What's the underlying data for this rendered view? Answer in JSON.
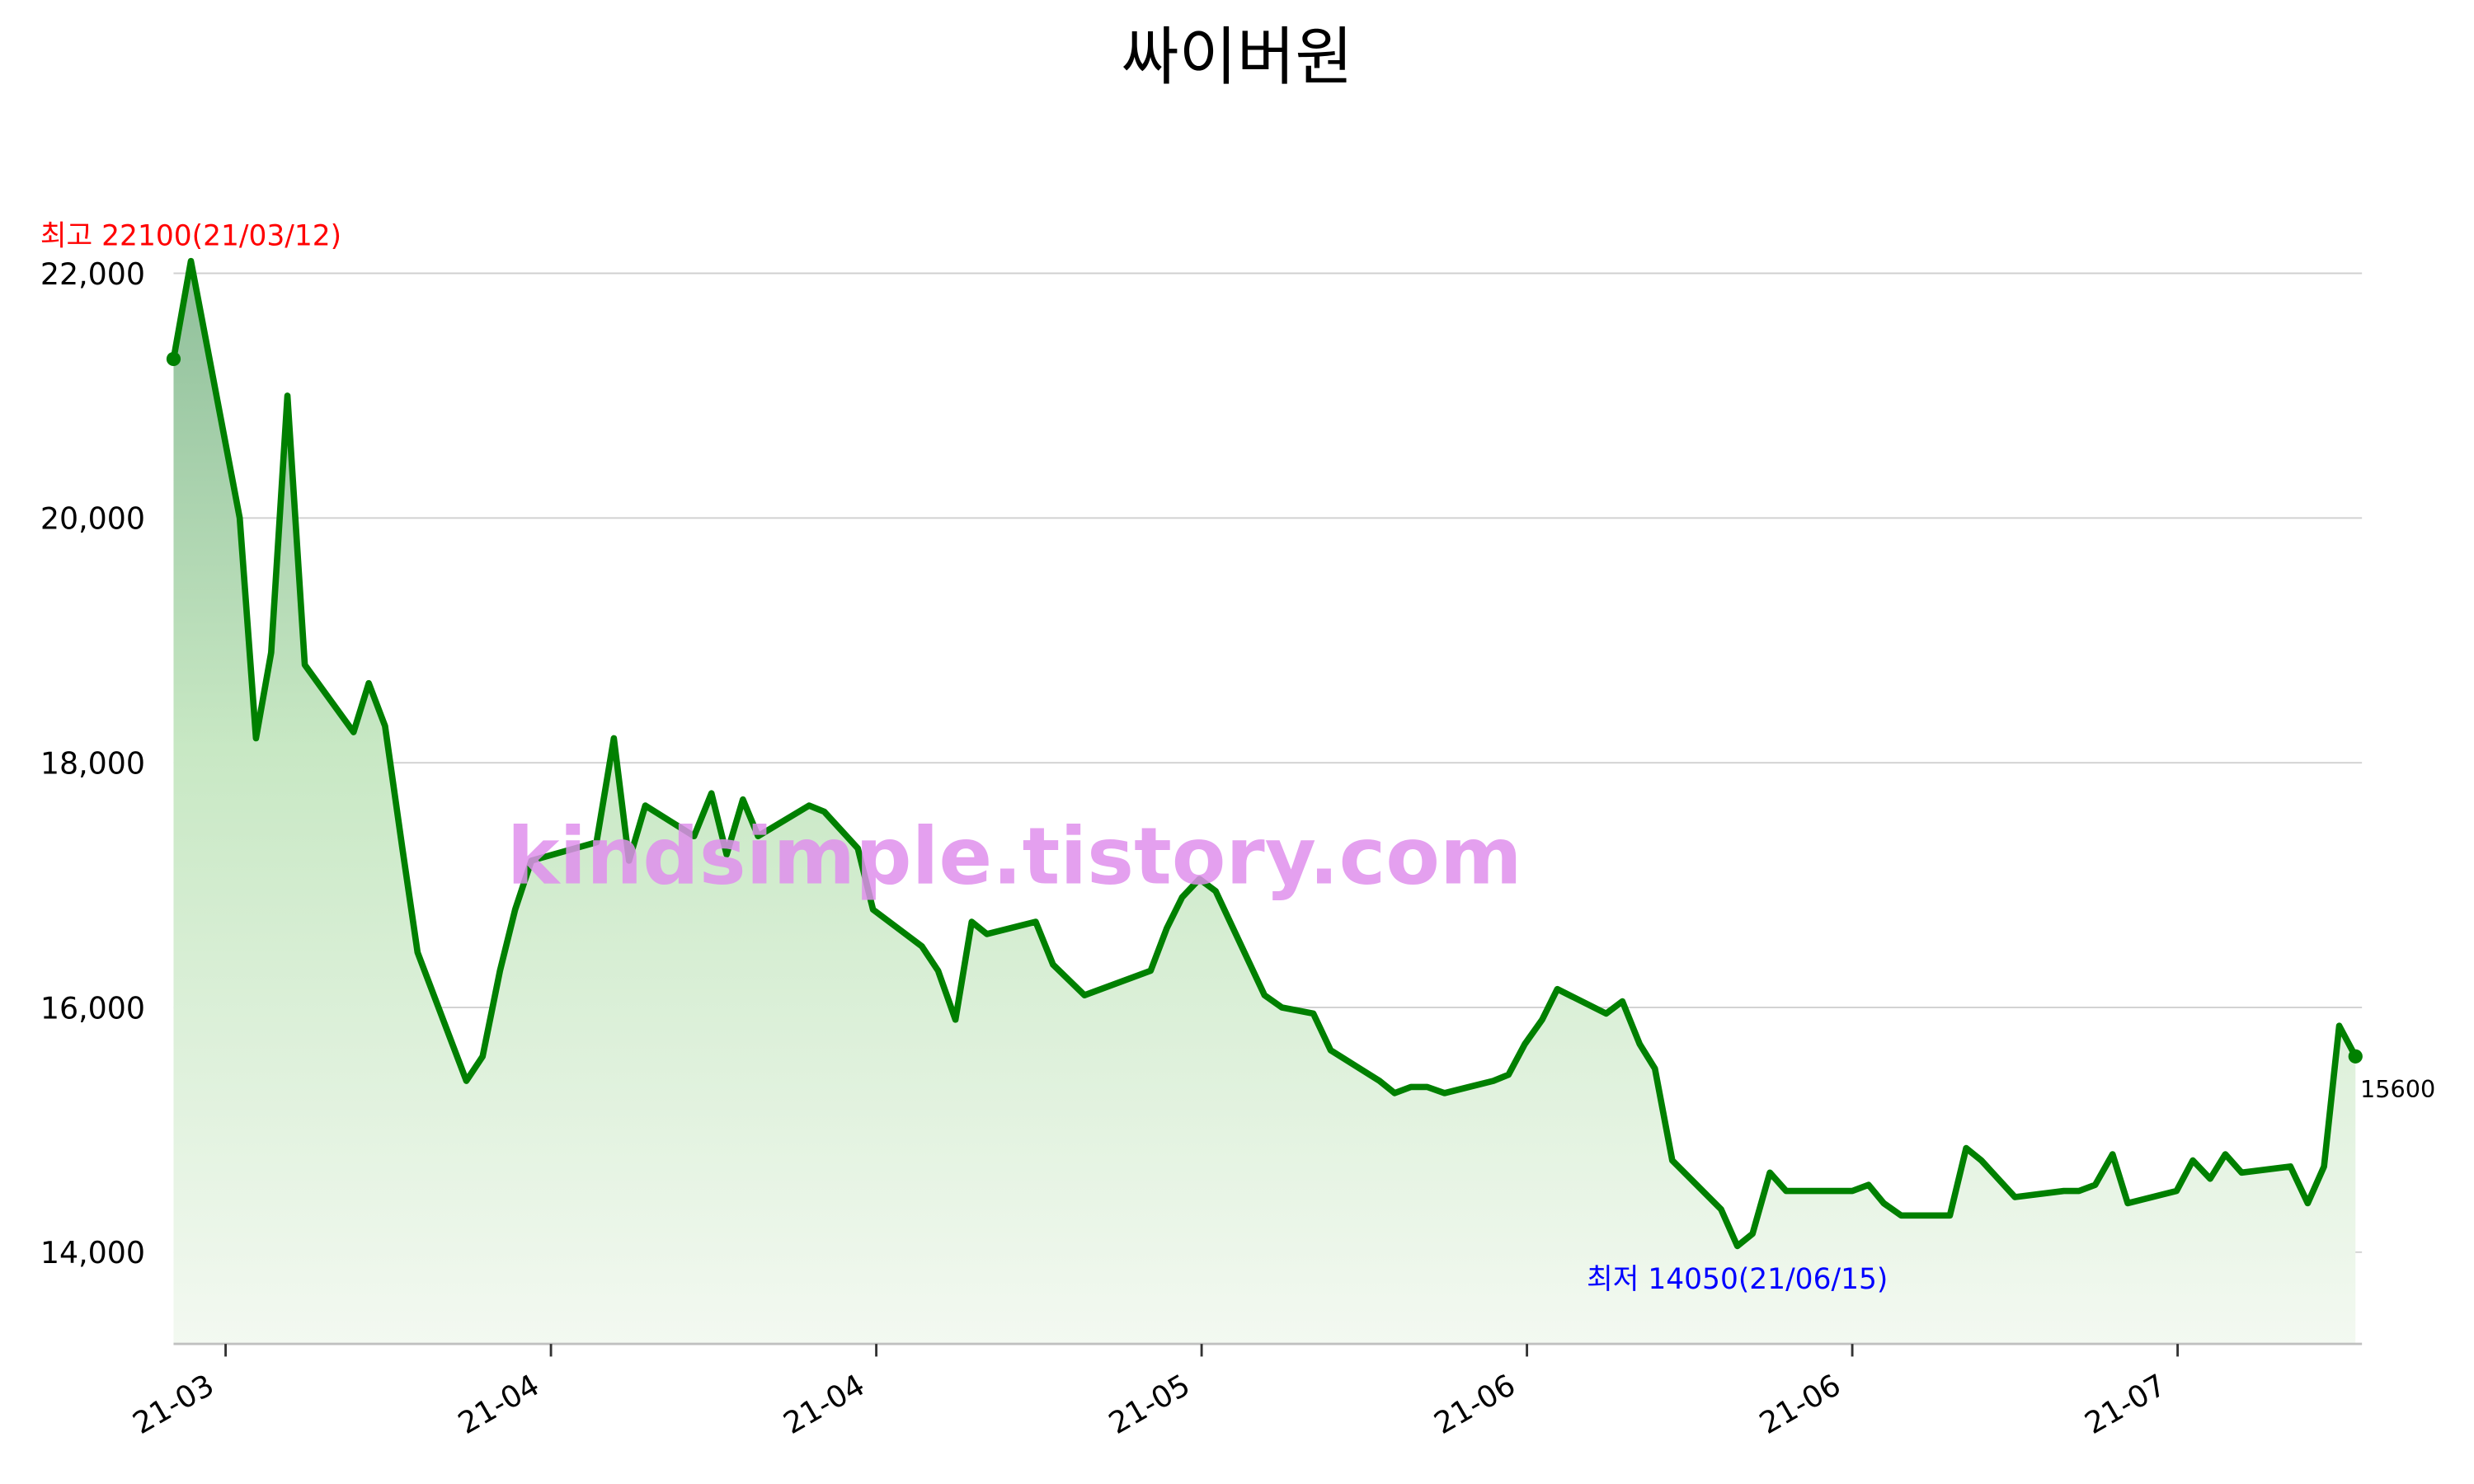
{
  "chart_data": {
    "type": "line",
    "title": "싸이버원",
    "watermark": "kindsimple.tistory.com",
    "max_annotation": "최고 22100(21/03/12)",
    "min_annotation": "최저 14050(21/06/15)",
    "last_label": "15600",
    "grid": true,
    "xlim": [
      -4.8,
      197
    ],
    "xticks": [
      {
        "value": 0,
        "label": "21-03"
      },
      {
        "value": 30,
        "label": "21-04"
      },
      {
        "value": 60,
        "label": "21-04"
      },
      {
        "value": 90,
        "label": "21-05"
      },
      {
        "value": 120,
        "label": "21-06"
      },
      {
        "value": 150,
        "label": "21-06"
      },
      {
        "value": 180,
        "label": "21-07"
      }
    ],
    "ylim": [
      13250,
      22300
    ],
    "yticks": [
      {
        "value": 14000,
        "label": "14,000"
      },
      {
        "value": 16000,
        "label": "16,000"
      },
      {
        "value": 18000,
        "label": "18,000"
      },
      {
        "value": 20000,
        "label": "20,000"
      },
      {
        "value": 22000,
        "label": "22,000"
      }
    ],
    "x": [
      -4.8,
      -3.2,
      1.3,
      2.8,
      4.2,
      5.7,
      7.3,
      11.8,
      13.2,
      14.7,
      16.3,
      17.7,
      22.2,
      23.7,
      25.3,
      26.7,
      28.2,
      34.2,
      35.8,
      37.2,
      38.7,
      43.2,
      44.8,
      46.2,
      47.7,
      49.1,
      53.8,
      55.2,
      58.3,
      59.7,
      64.2,
      65.7,
      67.3,
      68.8,
      70.2,
      74.7,
      76.3,
      79.2,
      85.3,
      86.8,
      88.2,
      89.8,
      91.3,
      95.8,
      97.4,
      100.3,
      101.9,
      106.4,
      107.8,
      109.3,
      110.8,
      112.4,
      116.9,
      118.3,
      119.8,
      121.4,
      122.8,
      127.3,
      128.8,
      130.4,
      131.8,
      133.4,
      137.9,
      139.4,
      140.8,
      142.4,
      143.9,
      150.0,
      151.5,
      152.9,
      154.5,
      159.0,
      160.5,
      161.9,
      165.0,
      169.5,
      170.9,
      172.4,
      174.0,
      175.4,
      179.9,
      181.4,
      183.0,
      184.4,
      185.9,
      190.4,
      192.0,
      193.5,
      194.9,
      196.4
    ],
    "series": [
      {
        "color": "#008000",
        "values": [
          21300,
          22100,
          20000,
          18200,
          18900,
          21000,
          18800,
          18250,
          18650,
          18300,
          17300,
          16450,
          15400,
          15600,
          16300,
          16800,
          17200,
          17350,
          18200,
          17200,
          17650,
          17400,
          17750,
          17250,
          17700,
          17400,
          17650,
          17600,
          17300,
          16800,
          16500,
          16300,
          15900,
          16700,
          16600,
          16700,
          16350,
          16100,
          16300,
          16650,
          16900,
          17050,
          16950,
          16100,
          16000,
          15950,
          15650,
          15400,
          15300,
          15350,
          15350,
          15300,
          15400,
          15450,
          15700,
          15900,
          16150,
          15950,
          16050,
          15700,
          15500,
          14750,
          14350,
          14050,
          14150,
          14650,
          14500,
          14500,
          14550,
          14400,
          14300,
          14300,
          14850,
          14750,
          14450,
          14500,
          14500,
          14550,
          14800,
          14400,
          14500,
          14750,
          14600,
          14800,
          14650,
          14700,
          14400,
          14700,
          15850,
          15600
        ]
      }
    ]
  }
}
